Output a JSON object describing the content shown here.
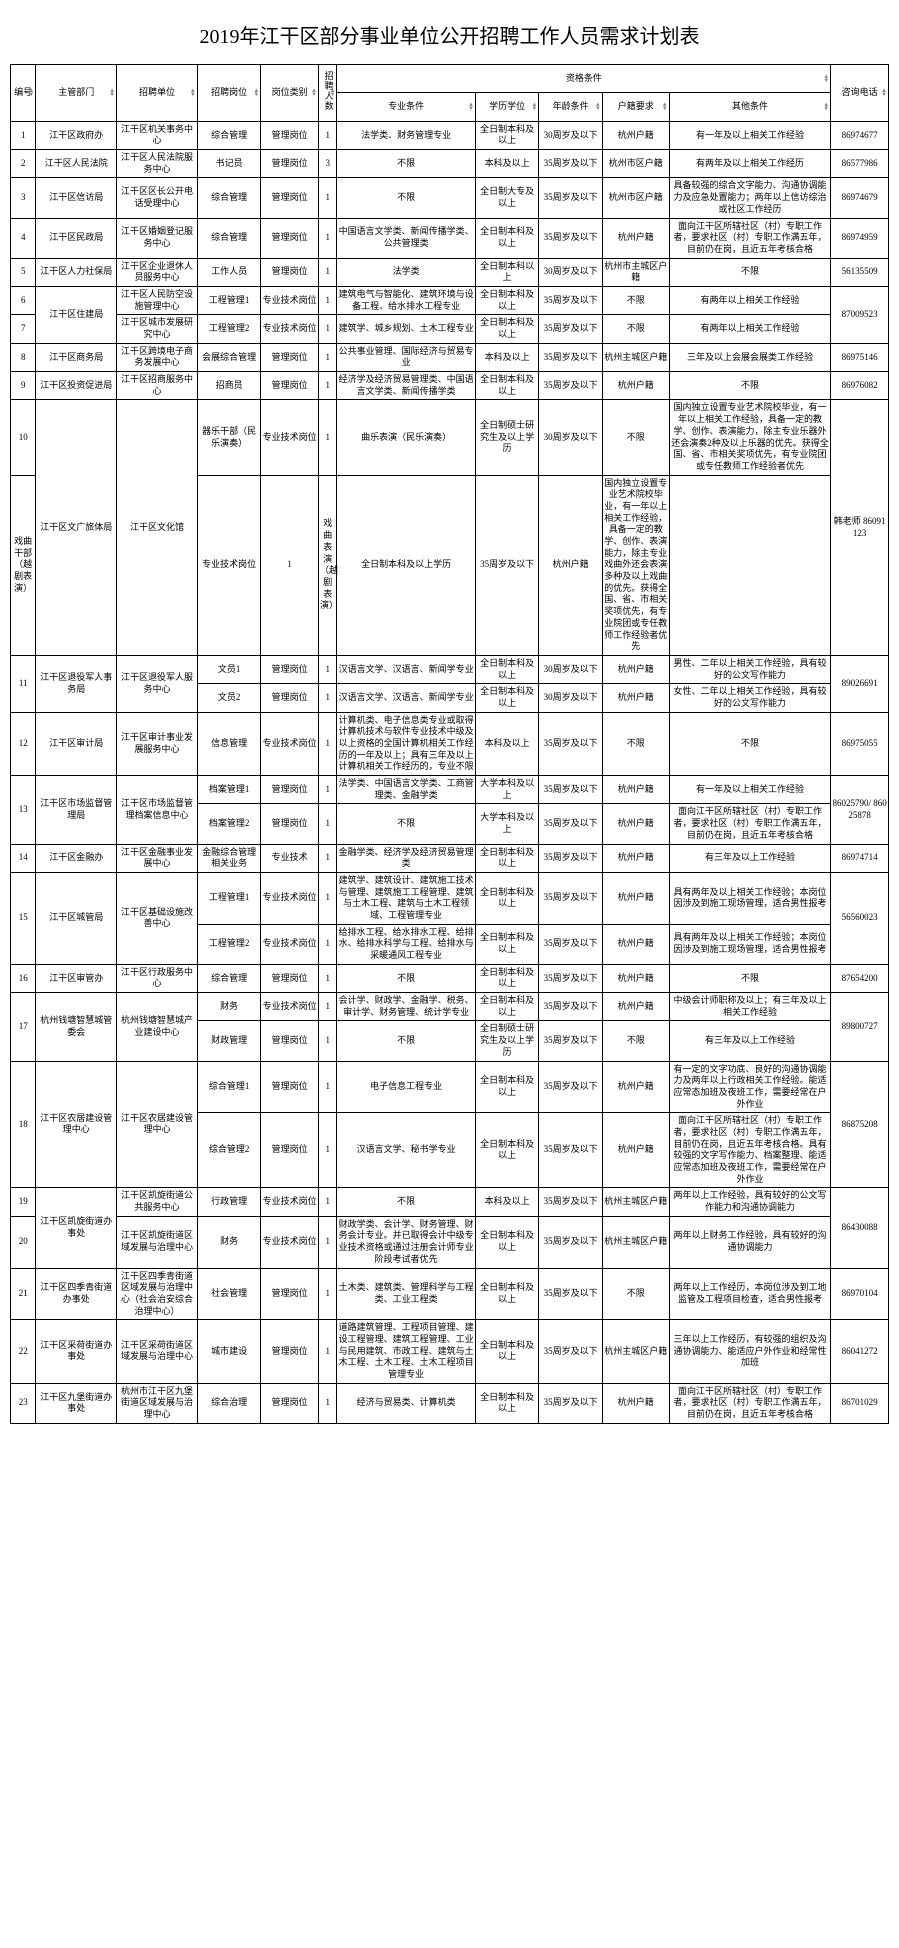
{
  "title": "2019年江干区部分事业单位公开招聘工作人员需求计划表",
  "headers": {
    "num": "编号",
    "dept": "主管部门",
    "unit": "招聘单位",
    "position": "招聘岗位",
    "category": "岗位类别",
    "count": "招聘人数",
    "qual_group": "资格条件",
    "major": "专业条件",
    "edu": "学历学位",
    "age": "年龄条件",
    "huji": "户籍要求",
    "other": "其他条件",
    "tel": "咨询电话"
  },
  "rows": [
    {
      "num": "1",
      "dept": "江干区政府办",
      "unit": "江干区机关事务中心",
      "pos": "综合管理",
      "cat": "管理岗位",
      "cnt": "1",
      "major": "法学类、财务管理专业",
      "edu": "全日制本科及以上",
      "age": "30周岁及以下",
      "huji": "杭州户籍",
      "other": "有一年及以上相关工作经验",
      "tel": "86974677"
    },
    {
      "num": "2",
      "dept": "江干区人民法院",
      "unit": "江干区人民法院服务中心",
      "pos": "书记员",
      "cat": "管理岗位",
      "cnt": "3",
      "major": "不限",
      "edu": "本科及以上",
      "age": "35周岁及以下",
      "huji": "杭州市区户籍",
      "other": "有两年及以上相关工作经历",
      "tel": "86577986"
    },
    {
      "num": "3",
      "dept": "江干区信访局",
      "unit": "江干区区长公开电话受理中心",
      "pos": "综合管理",
      "cat": "管理岗位",
      "cnt": "1",
      "major": "不限",
      "edu": "全日制大专及以上",
      "age": "35周岁及以下",
      "huji": "杭州市区户籍",
      "other": "具备较强的综合文字能力、沟通协调能力及应急处置能力；两年以上信访综治或社区工作经历",
      "tel": "86974679"
    },
    {
      "num": "4",
      "dept": "江干区民政局",
      "unit": "江干区婚姻登记服务中心",
      "pos": "综合管理",
      "cat": "管理岗位",
      "cnt": "1",
      "major": "中国语言文学类、新闻传播学类、公共管理类",
      "edu": "全日制本科及以上",
      "age": "35周岁及以下",
      "huji": "杭州户籍",
      "other": "面向江干区所辖社区（村）专职工作者，要求社区（村）专职工作满五年，目前仍在岗，且近五年考核合格",
      "tel": "86974959"
    },
    {
      "num": "5",
      "dept": "江干区人力社保局",
      "unit": "江干区企业退休人员服务中心",
      "pos": "工作人员",
      "cat": "管理岗位",
      "cnt": "1",
      "major": "法学类",
      "edu": "全日制本科以上",
      "age": "30周岁及以下",
      "huji": "杭州市主城区户籍",
      "other": "不限",
      "tel": "56135509"
    },
    {
      "num": "6",
      "dept": "江干区住建局",
      "dept_rs": 2,
      "unit": "江干区人民防空设施管理中心",
      "pos": "工程管理1",
      "cat": "专业技术岗位",
      "cnt": "1",
      "major": "建筑电气与智能化、建筑环境与设备工程、给水排水工程专业",
      "edu": "全日制本科及以上",
      "age": "35周岁及以下",
      "huji": "不限",
      "other": "有两年以上相关工作经验",
      "tel": "87009523",
      "tel_rs": 2
    },
    {
      "num": "7",
      "dept": "",
      "unit": "江干区城市发展研究中心",
      "pos": "工程管理2",
      "cat": "专业技术岗位",
      "cnt": "1",
      "major": "建筑学、城乡规划、土木工程专业",
      "edu": "全日制本科及以上",
      "age": "35周岁及以下",
      "huji": "不限",
      "other": "有两年以上相关工作经验",
      "tel": ""
    },
    {
      "num": "8",
      "dept": "江干区商务局",
      "unit": "江干区跨境电子商务发展中心",
      "pos": "会展综合管理",
      "cat": "管理岗位",
      "cnt": "1",
      "major": "公共事业管理、国际经济与贸易专业",
      "edu": "本科及以上",
      "age": "35周岁及以下",
      "huji": "杭州主城区户籍",
      "other": "三年及以上会展会展类工作经验",
      "tel": "86975146"
    },
    {
      "num": "9",
      "dept": "江干区投资促进局",
      "unit": "江干区招商服务中心",
      "pos": "招商员",
      "cat": "管理岗位",
      "cnt": "1",
      "major": "经济学及经济贸易管理类、中国语言文学类、新闻传播学类",
      "edu": "全日制本科及以上",
      "age": "35周岁及以下",
      "huji": "杭州户籍",
      "other": "不限",
      "tel": "86976082"
    },
    {
      "num": "10",
      "dept": "江干区文广旅体局",
      "dept_rs": 2,
      "unit": "江干区文化馆",
      "unit_rs": 2,
      "pos": "器乐干部（民乐演奏）",
      "cat": "专业技术岗位",
      "cnt": "1",
      "major": "曲乐表演（民乐演奏）",
      "edu": "全日制硕士研究生及以上学历",
      "age": "30周岁及以下",
      "huji": "不限",
      "other": "国内独立设置专业艺术院校毕业，有一年以上相关工作经验，具备一定的教学、创作、表演能力，除主专业乐器外还会演奏2种及以上乐器的优先。获得全国、省、市相关奖项优先，有专业院团或专任教师工作经验者优先",
      "tel": "韩老师 86091123",
      "tel_rs": 2
    },
    {
      "num": "",
      "dept": "",
      "unit": "",
      "pos": "戏曲干部（越剧表演）",
      "cat": "专业技术岗位",
      "cnt": "1",
      "major": "戏曲表演（越剧表演）",
      "edu": "全日制本科及以上学历",
      "age": "35周岁及以下",
      "huji": "杭州户籍",
      "other": "国内独立设置专业艺术院校毕业，有一年以上相关工作经验，具备一定的教学、创作、表演能力，除主专业戏曲外还会表演多种及以上戏曲的优先。获得全国、省、市相关奖项优先，有专业院团或专任教师工作经验者优先",
      "tel": ""
    },
    {
      "num": "11",
      "num_rs": 2,
      "dept": "江干区退役军人事务局",
      "dept_rs": 2,
      "unit": "江干区退役军人服务中心",
      "unit_rs": 2,
      "pos": "文员1",
      "cat": "管理岗位",
      "cnt": "1",
      "major": "汉语言文学、汉语言、新闻学专业",
      "edu": "全日制本科及以上",
      "age": "30周岁及以下",
      "huji": "杭州户籍",
      "other": "男性、二年以上相关工作经验，具有较好的公文写作能力",
      "tel": "89026691",
      "tel_rs": 2
    },
    {
      "num": "",
      "dept": "",
      "unit": "",
      "pos": "文员2",
      "cat": "管理岗位",
      "cnt": "1",
      "major": "汉语言文学、汉语言、新闻学专业",
      "edu": "全日制本科及以上",
      "age": "30周岁及以下",
      "huji": "杭州户籍",
      "other": "女性、二年以上相关工作经验，具有较好的公文写作能力",
      "tel": ""
    },
    {
      "num": "12",
      "dept": "江干区审计局",
      "unit": "江干区审计事业发展服务中心",
      "pos": "信息管理",
      "cat": "专业技术岗位",
      "cnt": "1",
      "major": "计算机类、电子信息类专业或取得计算机技术与软件专业技术中级及以上资格的全国计算机相关工作经历的一年及以上；具有三年及以上计算机相关工作经历的，专业不限",
      "edu": "本科及以上",
      "age": "35周岁及以下",
      "huji": "不限",
      "other": "不限",
      "tel": "86975055"
    },
    {
      "num": "13",
      "num_rs": 2,
      "dept": "江干区市场监督管理局",
      "dept_rs": 2,
      "unit": "江干区市场监督管理档案信息中心",
      "unit_rs": 2,
      "pos": "档案管理1",
      "cat": "管理岗位",
      "cnt": "1",
      "major": "法学类、中国语言文学类、工商管理类、金融学类",
      "edu": "大学本科及以上",
      "age": "35周岁及以下",
      "huji": "杭州户籍",
      "other": "有一年及以上相关工作经验",
      "tel": "86025790/ 86025878",
      "tel_rs": 2
    },
    {
      "num": "",
      "dept": "",
      "unit": "",
      "pos": "档案管理2",
      "cat": "管理岗位",
      "cnt": "1",
      "major": "不限",
      "edu": "大学本科及以上",
      "age": "35周岁及以下",
      "huji": "杭州户籍",
      "other": "面向江干区所辖社区（村）专职工作者，要求社区（村）专职工作满五年，目前仍在岗，且近五年考核合格",
      "tel": ""
    },
    {
      "num": "14",
      "dept": "江干区金融办",
      "unit": "江干区金融事业发展中心",
      "pos": "金融综合管理相关业务",
      "cat": "专业技术",
      "cnt": "1",
      "major": "金融学类、经济学及经济贸易管理类",
      "edu": "全日制本科及以上",
      "age": "35周岁及以下",
      "huji": "杭州户籍",
      "other": "有三年及以上工作经验",
      "tel": "86974714"
    },
    {
      "num": "15",
      "num_rs": 2,
      "dept": "江干区城管局",
      "dept_rs": 2,
      "unit": "江干区基础设施改善中心",
      "unit_rs": 2,
      "pos": "工程管理1",
      "cat": "专业技术岗位",
      "cnt": "1",
      "major": "建筑学、建筑设计、建筑施工技术与管理、建筑施工工程管理、建筑与土木工程、建筑与土木工程领域、工程管理专业",
      "edu": "全日制本科及以上",
      "age": "35周岁及以下",
      "huji": "杭州户籍",
      "other": "具有两年及以上相关工作经验；本岗位因涉及到施工现场管理，适合男性报考",
      "tel": "56560023",
      "tel_rs": 2
    },
    {
      "num": "",
      "dept": "",
      "unit": "",
      "pos": "工程管理2",
      "cat": "专业技术岗位",
      "cnt": "1",
      "major": "给排水工程、给水排水工程、给排水、给排水科学与工程、给排水与采暖通风工程专业",
      "edu": "全日制本科及以上",
      "age": "35周岁及以下",
      "huji": "杭州户籍",
      "other": "具有两年及以上相关工作经验；本岗位因涉及到施工现场管理，适合男性报考",
      "tel": ""
    },
    {
      "num": "16",
      "dept": "江干区审管办",
      "unit": "江干区行政服务中心",
      "pos": "综合管理",
      "cat": "管理岗位",
      "cnt": "1",
      "major": "不限",
      "edu": "全日制本科及以上",
      "age": "35周岁及以下",
      "huji": "杭州户籍",
      "other": "不限",
      "tel": "87654200"
    },
    {
      "num": "17",
      "num_rs": 2,
      "dept": "杭州钱塘智慧城管委会",
      "dept_rs": 2,
      "unit": "杭州钱塘智慧城产业建设中心",
      "unit_rs": 2,
      "pos": "财务",
      "cat": "专业技术岗位",
      "cnt": "1",
      "major": "会计学、财政学、金融学、税务、审计学、财务管理、统计学专业",
      "edu": "全日制本科及以上",
      "age": "35周岁及以下",
      "huji": "杭州户籍",
      "other": "中级会计师职称及以上；有三年及以上相关工作经验",
      "tel": "89800727",
      "tel_rs": 2
    },
    {
      "num": "",
      "dept": "",
      "unit": "",
      "pos": "财政管理",
      "cat": "管理岗位",
      "cnt": "1",
      "major": "不限",
      "edu": "全日制硕士研究生及以上学历",
      "age": "35周岁及以下",
      "huji": "不限",
      "other": "有三年及以上工作经验",
      "tel": ""
    },
    {
      "num": "18",
      "num_rs": 2,
      "dept": "江干区农居建设管理中心",
      "dept_rs": 2,
      "unit": "江干区农居建设管理中心",
      "unit_rs": 2,
      "pos": "综合管理1",
      "cat": "管理岗位",
      "cnt": "1",
      "major": "电子信息工程专业",
      "edu": "全日制本科及以上",
      "age": "35周岁及以下",
      "huji": "杭州户籍",
      "other": "有一定的文字功底、良好的沟通协调能力及两年以上行政相关工作经验。能适应常态加班及夜班工作，需要经常在户外作业",
      "tel": "86875208",
      "tel_rs": 2
    },
    {
      "num": "",
      "dept": "",
      "unit": "",
      "pos": "综合管理2",
      "cat": "管理岗位",
      "cnt": "1",
      "major": "汉语言文学、秘书学专业",
      "edu": "全日制本科及以上",
      "age": "35周岁及以下",
      "huji": "杭州户籍",
      "other": "面向江干区所辖社区（村）专职工作者，要求社区（村）专职工作满五年，目前仍在岗，且近五年考核合格。具有较强的文字写作能力、档案整理、能适应常态加班及夜班工作，需要经常在户外作业",
      "tel": ""
    },
    {
      "num": "19",
      "dept": "江干区凯旋街道办事处",
      "dept_rs": 2,
      "unit": "江干区凯旋街道公共服务中心",
      "pos": "行政管理",
      "cat": "专业技术岗位",
      "cnt": "1",
      "major": "不限",
      "edu": "本科及以上",
      "age": "35周岁及以下",
      "huji": "杭州主城区户籍",
      "other": "两年以上工作经验，具有较好的公文写作能力和沟通协调能力",
      "tel": "86430088",
      "tel_rs": 2
    },
    {
      "num": "20",
      "dept": "",
      "unit": "江干区凯旋街道区域发展与治理中心",
      "pos": "财务",
      "cat": "专业技术岗位",
      "cnt": "1",
      "major": "财政学类、会计学、财务管理、财务会计专业。并已取得会计中级专业技术资格或通过注册会计师专业阶段考试者优先",
      "edu": "全日制本科及以上",
      "age": "35周岁及以下",
      "huji": "杭州主城区户籍",
      "other": "两年以上财务工作经验，具有较好的沟通协调能力",
      "tel": ""
    },
    {
      "num": "21",
      "dept": "江干区四季青街道办事处",
      "unit": "江干区四季青街道区域发展与治理中心（社会治安综合治理中心）",
      "pos": "社会管理",
      "cat": "管理岗位",
      "cnt": "1",
      "major": "土木类、建筑类、管理科学与工程类、工业工程类",
      "edu": "全日制本科及以上",
      "age": "35周岁及以下",
      "huji": "不限",
      "other": "两年以上工作经历，本岗位涉及到工地监管及工程项目检查，适合男性报考",
      "tel": "86970104"
    },
    {
      "num": "22",
      "dept": "江干区采荷街道办事处",
      "unit": "江干区采荷街道区域发展与治理中心",
      "pos": "城市建设",
      "cat": "管理岗位",
      "cnt": "1",
      "major": "道路建筑管理、工程项目管理、建设工程管理、建筑工程管理、工业与民用建筑、市政工程、建筑与土木工程、土木工程、土木工程项目管理专业",
      "edu": "全日制本科及以上",
      "age": "35周岁及以下",
      "huji": "杭州主城区户籍",
      "other": "三年以上工作经历，有较强的组织及沟通协调能力、能适应户外作业和经常性加班",
      "tel": "86041272"
    },
    {
      "num": "23",
      "dept": "江干区九堡街道办事处",
      "unit": "杭州市江干区九堡街道区域发展与治理中心",
      "pos": "综合治理",
      "cat": "管理岗位",
      "cnt": "1",
      "major": "经济与贸易类、计算机类",
      "edu": "全日制本科及以上",
      "age": "35周岁及以下",
      "huji": "杭州户籍",
      "other": "面向江干区所辖社区（村）专职工作者，要求社区（村）专职工作满五年，目前仍在岗，且近五年考核合格",
      "tel": "86701029"
    }
  ]
}
